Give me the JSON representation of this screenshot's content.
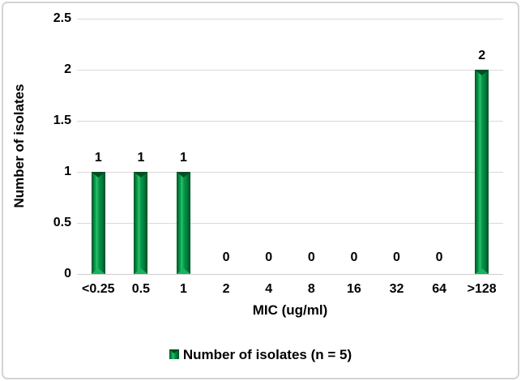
{
  "chart_data": {
    "type": "bar",
    "title": "",
    "categories": [
      "<0.25",
      "0.5",
      "1",
      "2",
      "4",
      "8",
      "16",
      "32",
      "64",
      ">128"
    ],
    "values": [
      1,
      1,
      1,
      0,
      0,
      0,
      0,
      0,
      0,
      2
    ],
    "data_labels": [
      "1",
      "1",
      "1",
      "0",
      "0",
      "0",
      "0",
      "0",
      "0",
      "2"
    ],
    "xlabel": "MIC (ug/ml)",
    "ylabel": "Number of isolates",
    "ylim": [
      0,
      2.5
    ],
    "ytick_step": 0.5,
    "yticks": [
      "0",
      "0.5",
      "1",
      "1.5",
      "2",
      "2.5"
    ],
    "grid": true,
    "legend": {
      "position": "bottom",
      "label": "Number of isolates (n = 5)"
    }
  },
  "colors": {
    "bar_edge_dark": "#025226",
    "bar_mid": "#029a49",
    "bar_highlight": "#2fbf6a",
    "bar_shade": "#028240",
    "bar_cap_dark": "#014d24",
    "bar_cap_light": "#16b45e",
    "grid": "#d9d9d9",
    "axis_line": "#d0d0d0",
    "text": "#000000",
    "frame_border": "#d3d3d3"
  }
}
